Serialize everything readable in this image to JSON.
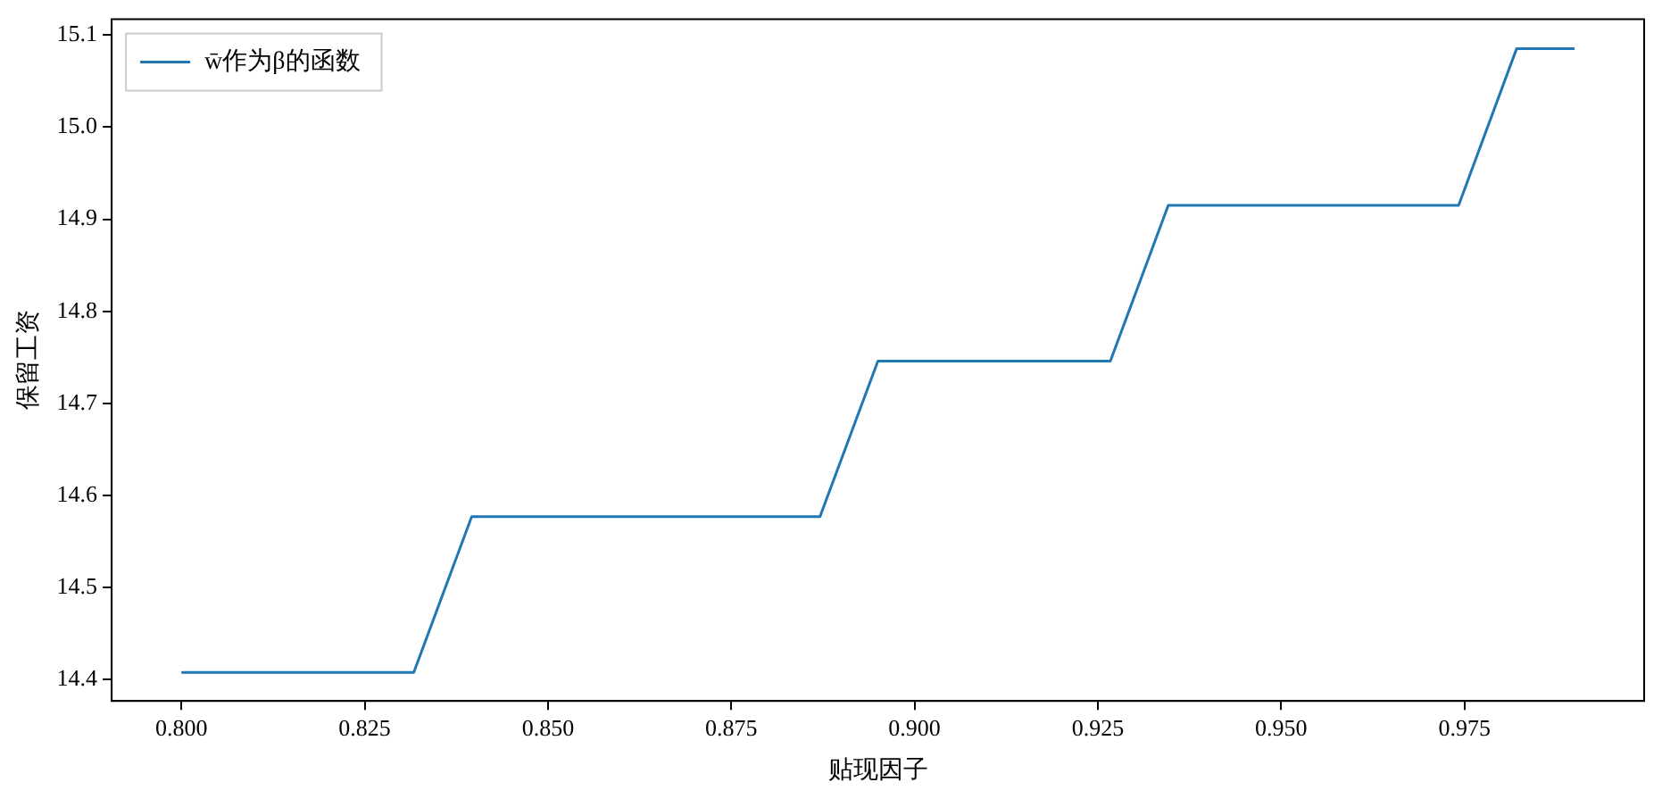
{
  "chart_data": {
    "type": "line",
    "xlabel": "贴现因子",
    "ylabel": "保留工资",
    "legend": "top left",
    "grid": false,
    "marker": "none",
    "line_style": "solid",
    "x": [
      0.8,
      0.8079,
      0.8158,
      0.8238,
      0.8317,
      0.8396,
      0.8475,
      0.8554,
      0.8633,
      0.8712,
      0.8792,
      0.8871,
      0.895,
      0.9029,
      0.9108,
      0.9188,
      0.9267,
      0.9346,
      0.9425,
      0.9504,
      0.9583,
      0.9662,
      0.9742,
      0.9821,
      0.99
    ],
    "series": [
      {
        "name": "w̄作为β的函数",
        "color": "#1f77b4",
        "values": [
          14.408,
          14.408,
          14.408,
          14.408,
          14.408,
          14.577,
          14.577,
          14.577,
          14.577,
          14.577,
          14.577,
          14.577,
          14.746,
          14.746,
          14.746,
          14.746,
          14.746,
          14.915,
          14.915,
          14.915,
          14.915,
          14.915,
          14.915,
          15.085,
          15.085
        ]
      }
    ],
    "xlim": [
      0.7905,
      0.9995
    ],
    "xticks": [
      {
        "value": 0.8,
        "label": "0.800"
      },
      {
        "value": 0.825,
        "label": "0.825"
      },
      {
        "value": 0.85,
        "label": "0.850"
      },
      {
        "value": 0.875,
        "label": "0.875"
      },
      {
        "value": 0.9,
        "label": "0.900"
      },
      {
        "value": 0.925,
        "label": "0.925"
      },
      {
        "value": 0.95,
        "label": "0.950"
      },
      {
        "value": 0.975,
        "label": "0.975"
      }
    ],
    "ylim": [
      14.377,
      15.117
    ],
    "yticks": [
      {
        "value": 14.4,
        "label": "14.4"
      },
      {
        "value": 14.5,
        "label": "14.5"
      },
      {
        "value": 14.6,
        "label": "14.6"
      },
      {
        "value": 14.7,
        "label": "14.7"
      },
      {
        "value": 14.8,
        "label": "14.8"
      },
      {
        "value": 14.9,
        "label": "14.9"
      },
      {
        "value": 15.0,
        "label": "15.0"
      },
      {
        "value": 15.1,
        "label": "15.1"
      }
    ]
  }
}
